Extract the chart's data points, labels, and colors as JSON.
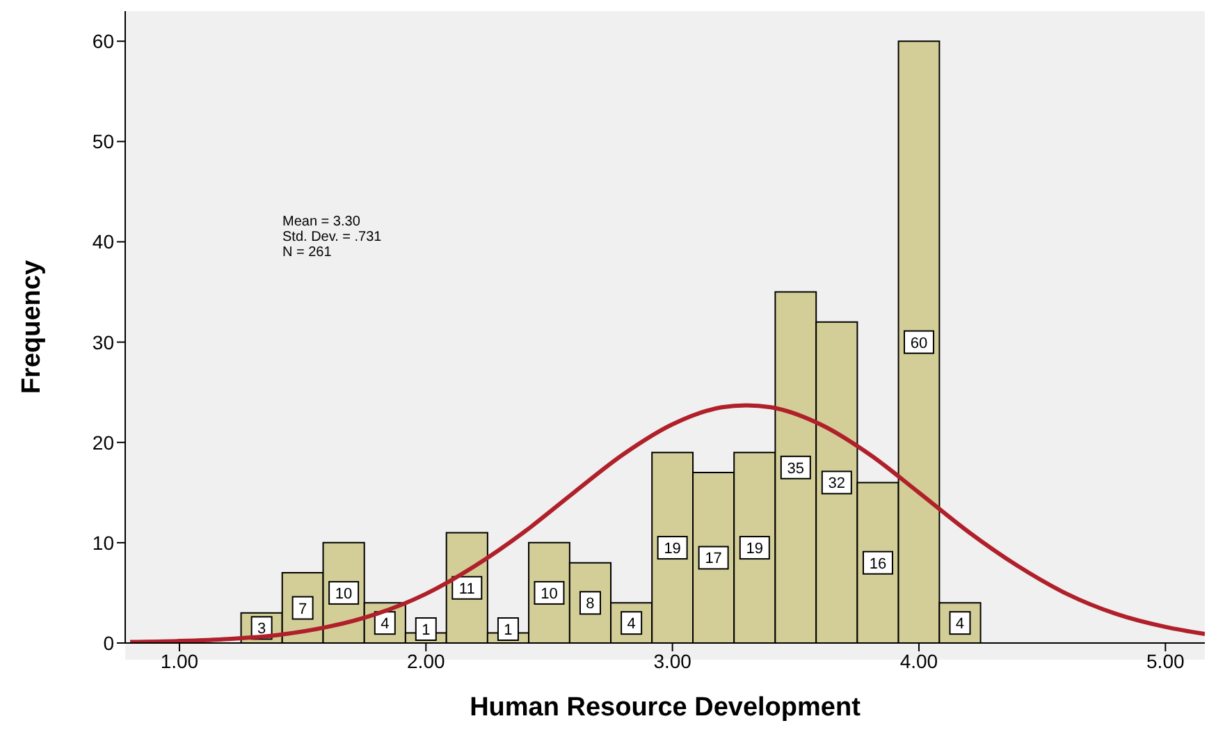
{
  "chart_data": {
    "type": "histogram",
    "xlabel": "Human Resource Development",
    "ylabel": "Frequency",
    "bins": [
      1.25,
      1.417,
      1.583,
      1.75,
      1.917,
      2.083,
      2.25,
      2.417,
      2.583,
      2.75,
      2.917,
      3.083,
      3.25,
      3.417,
      3.583,
      3.75,
      3.917,
      4.083,
      4.25
    ],
    "values": [
      3,
      7,
      10,
      4,
      1,
      11,
      1,
      10,
      8,
      4,
      19,
      17,
      19,
      35,
      32,
      16,
      60,
      4
    ],
    "color": "#d3ce97",
    "value_labels": [
      "3",
      "7",
      "10",
      "4",
      "1",
      "11",
      "1",
      "10",
      "8",
      "4",
      "19",
      "17",
      "19",
      "35",
      "32",
      "16",
      "60",
      "4"
    ],
    "series": [
      {
        "type": "line",
        "color": "#b0202a",
        "x": [
          0.8,
          1.0,
          1.2,
          1.4,
          1.6,
          1.8,
          2.0,
          2.2,
          2.4,
          2.6,
          2.8,
          3.0,
          3.2,
          3.3,
          3.4,
          3.6,
          3.8,
          4.0,
          4.2,
          4.4,
          4.6,
          4.8,
          5.0,
          5.16
        ],
        "values": [
          0.1,
          0.2,
          0.4,
          0.8,
          1.6,
          2.9,
          4.9,
          7.7,
          11.1,
          15,
          18.8,
          21.8,
          23.5,
          23.7,
          23.5,
          21.8,
          18.8,
          15,
          11.1,
          7.7,
          4.9,
          2.9,
          1.6,
          0.9
        ]
      }
    ],
    "xlim": [
      0.78,
      5.16
    ],
    "ylim": [
      0,
      63
    ],
    "xticks": [
      {
        "value": 1,
        "label": "1.00"
      },
      {
        "value": 2,
        "label": "2.00"
      },
      {
        "value": 3,
        "label": "3.00"
      },
      {
        "value": 4,
        "label": "4.00"
      },
      {
        "value": 5,
        "label": "5.00"
      }
    ],
    "yticks": [
      0,
      10,
      20,
      30,
      40,
      50,
      60
    ],
    "legend": false,
    "annotations": [
      "Mean = 3.30",
      "Std. Dev. = .731",
      "N = 261"
    ]
  }
}
